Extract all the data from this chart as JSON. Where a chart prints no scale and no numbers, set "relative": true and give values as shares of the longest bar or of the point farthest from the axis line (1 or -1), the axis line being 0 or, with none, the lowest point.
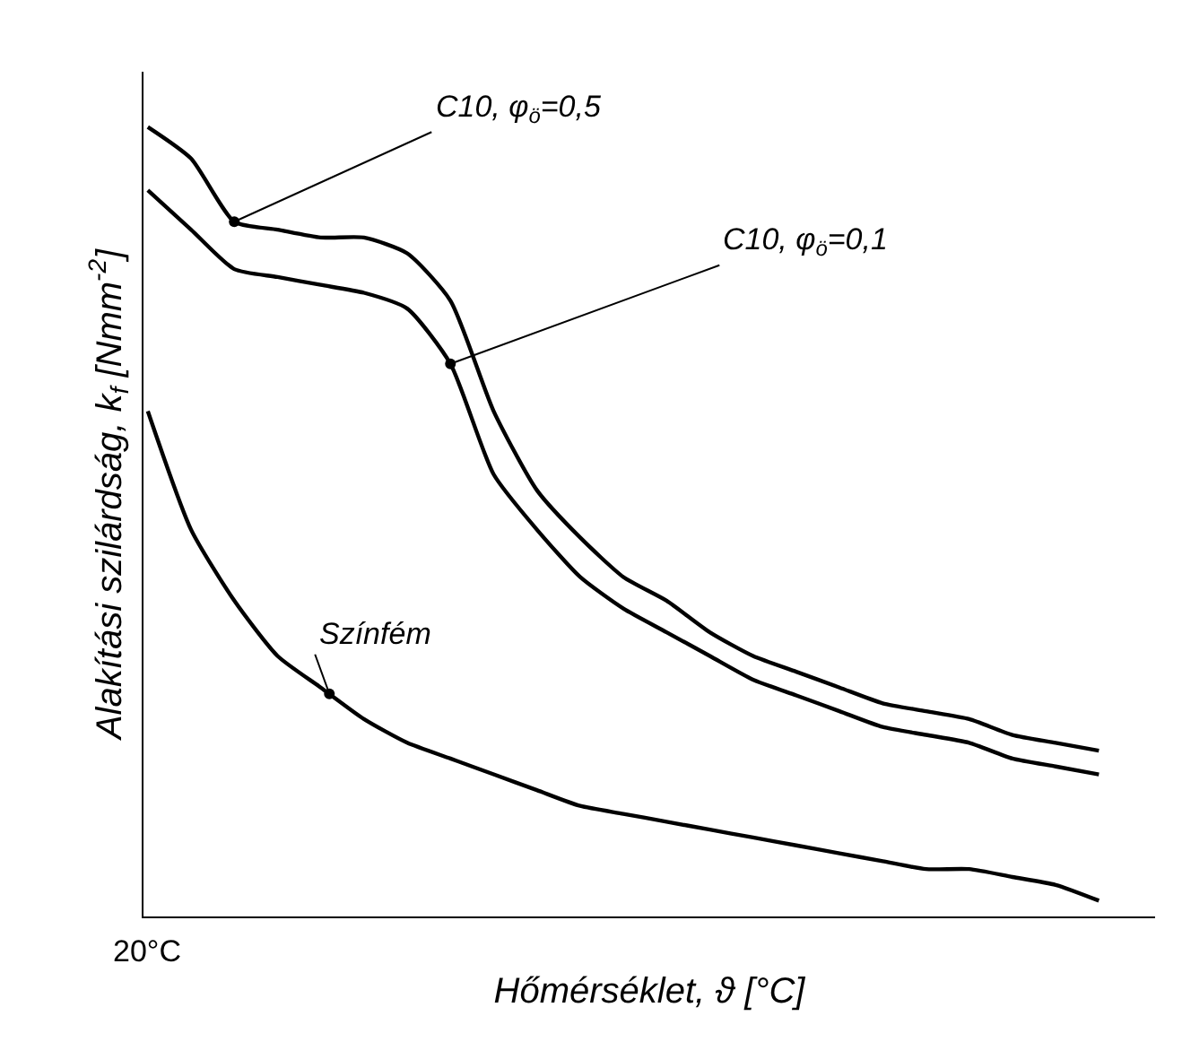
{
  "chart_data": {
    "type": "line",
    "relative": true,
    "xlabel": "Hőmérséklet, ϑ [°C]",
    "ylabel": "Alakítási szilárdság, k$_{f}$ [Nmm$^{-2}$]",
    "annotations": [
      "20°C"
    ],
    "categories": [
      null,
      null,
      null,
      null,
      null,
      null,
      null,
      null,
      null,
      null,
      null,
      null,
      null,
      null,
      null,
      null,
      null,
      null,
      null,
      null,
      null,
      null,
      null
    ],
    "series": [
      {
        "name": "C10, φ$_{ö}$=0,5",
        "color": "#000000",
        "values": [
          1.0,
          0.96,
          0.88,
          0.87,
          0.86,
          0.86,
          0.84,
          0.78,
          0.64,
          0.54,
          0.48,
          0.43,
          0.4,
          0.36,
          0.33,
          0.31,
          0.29,
          0.27,
          0.26,
          0.25,
          0.23,
          0.22,
          0.21
        ]
      },
      {
        "name": "C10, φ$_{ö}$=0,1",
        "color": "#000000",
        "values": [
          0.92,
          0.87,
          0.82,
          0.81,
          0.8,
          0.79,
          0.77,
          0.7,
          0.56,
          0.49,
          0.43,
          0.39,
          0.36,
          0.33,
          0.3,
          0.28,
          0.26,
          0.24,
          0.23,
          0.22,
          0.2,
          0.19,
          0.18
        ]
      },
      {
        "name": "Színfém",
        "color": "#000000",
        "values": [
          0.64,
          0.49,
          0.4,
          0.33,
          0.29,
          0.25,
          0.22,
          0.2,
          0.18,
          0.16,
          0.14,
          0.13,
          0.12,
          0.11,
          0.1,
          0.09,
          0.08,
          0.07,
          0.06,
          0.06,
          0.05,
          0.04,
          0.02
        ]
      }
    ],
    "legend": false,
    "marker": "none",
    "line_style": "solid"
  }
}
